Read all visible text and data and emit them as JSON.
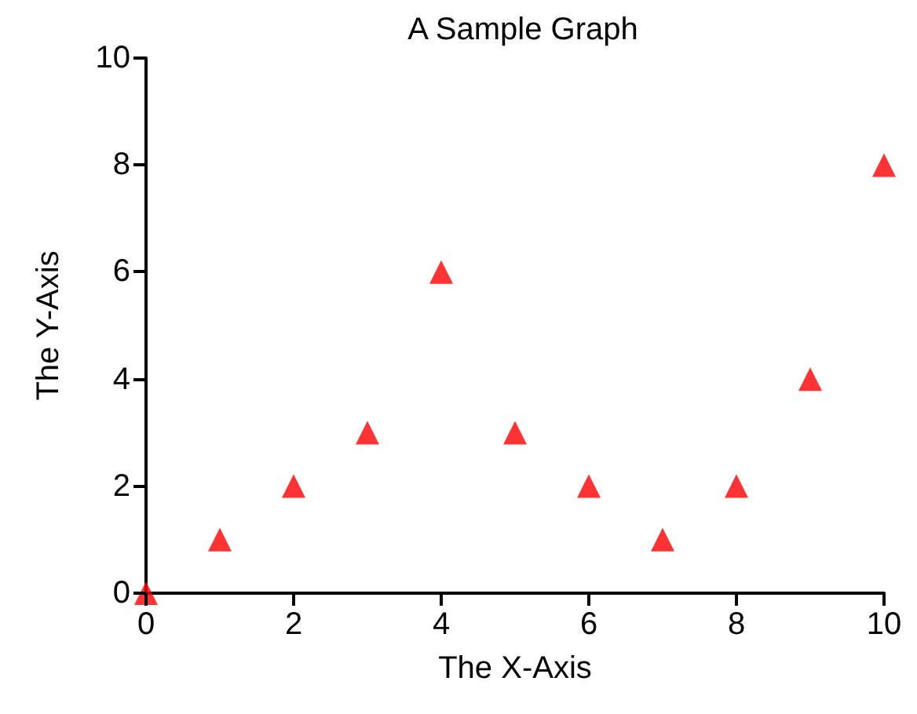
{
  "chart_data": {
    "type": "scatter",
    "title": "A Sample Graph",
    "xlabel": "The X-Axis",
    "ylabel": "The Y-Axis",
    "x": [
      0,
      1,
      2,
      3,
      4,
      5,
      6,
      7,
      8,
      9,
      10
    ],
    "series": [
      {
        "color": "#ff0000",
        "values": [
          0,
          1,
          2,
          3,
          6,
          3,
          2,
          1,
          2,
          4,
          8
        ]
      }
    ],
    "xlim": [
      0,
      10
    ],
    "xticks": [
      0,
      2,
      4,
      6,
      8,
      10
    ],
    "ylim": [
      0,
      10
    ],
    "yticks": [
      0,
      2,
      4,
      6,
      8,
      10
    ],
    "grid": false,
    "marker": "triangle"
  }
}
